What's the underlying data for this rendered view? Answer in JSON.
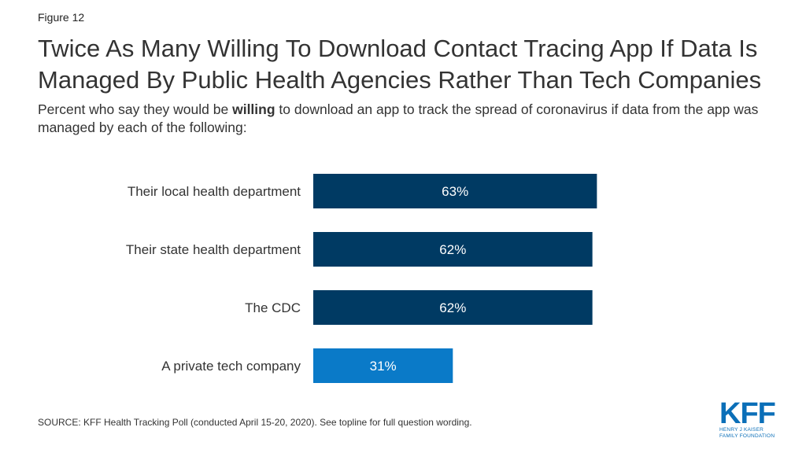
{
  "figure_label": "Figure 12",
  "title": {
    "line1": "Twice As Many Willing To Download Contact Tracing App If Data Is",
    "line2": "Managed By Public Health Agencies Rather Than Tech Companies"
  },
  "subtitle": {
    "before": "Percent who say they would be ",
    "bold": "willing",
    "after": " to download an app to track the spread of coronavirus if data from the app was managed by each of the following:"
  },
  "chart_data": {
    "type": "bar",
    "orientation": "horizontal",
    "categories": [
      "Their local health department",
      "Their state health department",
      "The CDC",
      "A private tech company"
    ],
    "values": [
      63,
      62,
      62,
      31
    ],
    "value_labels": [
      "63%",
      "62%",
      "62%",
      "31%"
    ],
    "unit": "%",
    "bar_colors": [
      "#003a63",
      "#003a63",
      "#003a63",
      "#0a7ac8"
    ],
    "xlim": [
      0,
      100
    ],
    "grid": false,
    "legend": "none"
  },
  "source": "SOURCE: KFF Health Tracking Poll (conducted April 15-20, 2020). See topline for full question wording.",
  "logo": {
    "main": "KFF",
    "sub1": "HENRY J KAISER",
    "sub2": "FAMILY FOUNDATION"
  }
}
